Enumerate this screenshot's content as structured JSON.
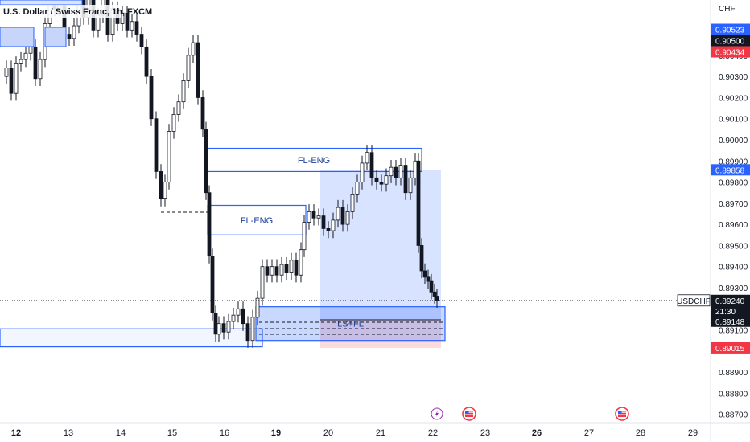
{
  "header": {
    "title": "U.S. Dollar / Swiss Franc, 1h, FXCM"
  },
  "chart_data": {
    "type": "candlestick",
    "symbol": "USDCHF",
    "currency": "CHF",
    "timeframe": "1h",
    "y_axis_ticks": [
      "0.90400",
      "0.90300",
      "0.90200",
      "0.90100",
      "0.90000",
      "0.89900",
      "0.89800",
      "0.89700",
      "0.89600",
      "0.89500",
      "0.89400",
      "0.89300",
      "0.89100",
      "0.88900",
      "0.88800",
      "0.88700"
    ],
    "ylim": [
      0.8867,
      0.9062
    ],
    "x_axis_ticks": [
      {
        "label": "12",
        "bold": true
      },
      {
        "label": "13",
        "bold": false
      },
      {
        "label": "14",
        "bold": false
      },
      {
        "label": "15",
        "bold": false
      },
      {
        "label": "16",
        "bold": false
      },
      {
        "label": "19",
        "bold": true
      },
      {
        "label": "20",
        "bold": false
      },
      {
        "label": "21",
        "bold": false
      },
      {
        "label": "22",
        "bold": false
      },
      {
        "label": "23",
        "bold": false
      },
      {
        "label": "26",
        "bold": true
      },
      {
        "label": "27",
        "bold": false
      },
      {
        "label": "28",
        "bold": false
      },
      {
        "label": "29",
        "bold": false
      }
    ],
    "price_tags": [
      {
        "value": "0.90523",
        "kind": "blue"
      },
      {
        "value": "0.90500",
        "kind": "black"
      },
      {
        "value": "0.90434",
        "kind": "red"
      },
      {
        "value": "0.89858",
        "kind": "blue"
      },
      {
        "value": "0.89240",
        "kind": "black"
      },
      {
        "value": "21:30",
        "kind": "black"
      },
      {
        "value": "0.89148",
        "kind": "black"
      },
      {
        "value": "0.89015",
        "kind": "red"
      }
    ],
    "symbol_label": "USDCHF",
    "zones": [
      {
        "label": "FL-ENG",
        "top": 0.8996,
        "bottom": 0.8985
      },
      {
        "label": "FL-ENG",
        "top": 0.8969,
        "bottom": 0.8955
      },
      {
        "label": "LS+FL",
        "top": 0.8921,
        "bottom": 0.8905
      }
    ],
    "last_price": 0.8924,
    "position": {
      "entry": 0.89148,
      "target": 0.89858,
      "stop": 0.89015
    },
    "event_icons": [
      "lightning-icon",
      "us-flag-icon",
      "us-flag-icon"
    ],
    "colors": {
      "up": "#26a69a",
      "down": "#ef5350",
      "zone": "#2962ff",
      "target": "#2962ff",
      "stop": "#f23645"
    }
  }
}
